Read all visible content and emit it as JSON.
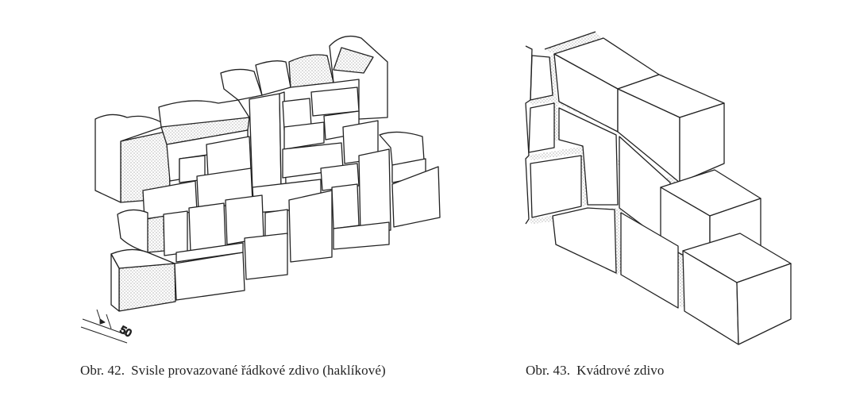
{
  "figure42": {
    "caption_number": "Obr. 42.",
    "caption_text": "Svisle provazované řádkové zdivo (haklíkové)",
    "dimension_label": "50"
  },
  "figure43": {
    "caption_number": "Obr. 43.",
    "caption_text": "Kvádrové zdivo"
  },
  "colors": {
    "ink": "#222222",
    "paper": "#ffffff",
    "mortar_stipple": "#555555"
  }
}
